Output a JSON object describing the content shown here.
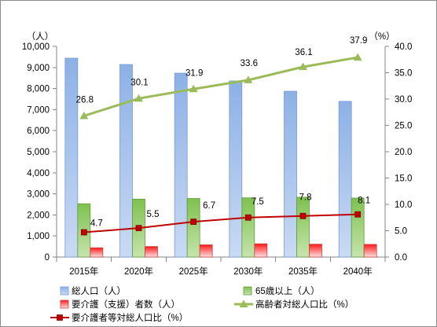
{
  "chart_data": {
    "type": "bar",
    "categories": [
      "2015年",
      "2020年",
      "2025年",
      "2030年",
      "2035年",
      "2040年"
    ],
    "series": [
      {
        "name": "総人口（人）",
        "type": "bar",
        "axis": "left",
        "values": [
          9440,
          9140,
          8730,
          8360,
          7870,
          7390
        ],
        "color": "#8db1e6",
        "color_light": "#c9daf3",
        "border_color": "#7297cf"
      },
      {
        "name": "65歳以上（人）",
        "type": "bar",
        "axis": "left",
        "values": [
          2530,
          2750,
          2780,
          2810,
          2840,
          2800
        ],
        "color": "#7fc14f",
        "color_light": "#c6e4ad",
        "border_color": "#5d9736"
      },
      {
        "name": "要介護（支援）者数（人）",
        "type": "bar",
        "axis": "left",
        "values": [
          440,
          500,
          580,
          630,
          610,
          600
        ],
        "color": "#ff1a1a",
        "color_light": "#ffe0e0",
        "border_color": "#c83c3c"
      },
      {
        "name": "高齢者対総人口比（%）",
        "type": "line",
        "axis": "right",
        "marker": "triangle",
        "values": [
          26.8,
          30.1,
          31.9,
          33.6,
          36.1,
          37.9
        ],
        "data_labels": [
          "26.8",
          "30.1",
          "31.9",
          "33.6",
          "36.1",
          "37.9"
        ],
        "color": "#9bbb59"
      },
      {
        "name": "要介護者等対総人口比（%）",
        "type": "line",
        "axis": "right",
        "marker": "square",
        "values": [
          4.7,
          5.5,
          6.7,
          7.5,
          7.8,
          8.1
        ],
        "data_labels": [
          "4.7",
          "5.5",
          "6.7",
          "7.5",
          "7.8",
          "8.1"
        ],
        "color": "#c00000"
      }
    ],
    "left_axis": {
      "unit_label": "（人）",
      "range": [
        0,
        10000
      ],
      "tick_labels": [
        "0",
        "1,000",
        "2,000",
        "3,000",
        "4,000",
        "5,000",
        "6,000",
        "7,000",
        "8,000",
        "9,000",
        "10,000"
      ]
    },
    "right_axis": {
      "unit_label": "（%）",
      "range": [
        0,
        40
      ],
      "tick_labels": [
        "0.0",
        "5.0",
        "10.0",
        "15.0",
        "20.0",
        "25.0",
        "30.0",
        "35.0",
        "40.0"
      ]
    },
    "grid": false,
    "legend_position": "bottom"
  }
}
